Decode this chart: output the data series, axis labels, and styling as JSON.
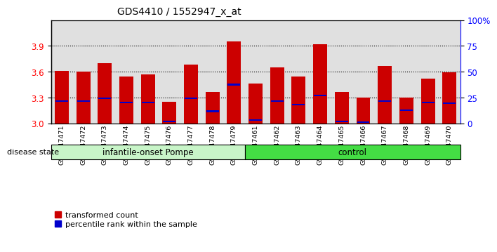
{
  "title": "GDS4410 / 1552947_x_at",
  "samples": [
    "GSM947471",
    "GSM947472",
    "GSM947473",
    "GSM947474",
    "GSM947475",
    "GSM947476",
    "GSM947477",
    "GSM947478",
    "GSM947479",
    "GSM947461",
    "GSM947462",
    "GSM947463",
    "GSM947464",
    "GSM947465",
    "GSM947466",
    "GSM947467",
    "GSM947468",
    "GSM947469",
    "GSM947470"
  ],
  "red_heights": [
    3.61,
    3.6,
    3.7,
    3.54,
    3.57,
    3.25,
    3.68,
    3.36,
    3.95,
    3.46,
    3.65,
    3.54,
    3.92,
    3.36,
    3.3,
    3.67,
    3.3,
    3.52,
    3.59
  ],
  "blue_values": [
    3.26,
    3.26,
    3.29,
    3.24,
    3.24,
    3.02,
    3.29,
    3.14,
    3.45,
    3.04,
    3.26,
    3.22,
    3.32,
    3.02,
    3.01,
    3.26,
    3.15,
    3.24,
    3.23
  ],
  "group_labels": [
    "infantile-onset Pompe",
    "control"
  ],
  "group_sizes": [
    9,
    10
  ],
  "group_color_left": "#c8f5c8",
  "group_color_right": "#44dd44",
  "bar_color": "#CC0000",
  "blue_color": "#0000CC",
  "y_min": 3.0,
  "y_max": 4.2,
  "y_ticks": [
    3.0,
    3.3,
    3.6,
    3.9
  ],
  "right_y_ticks": [
    0,
    25,
    50,
    75,
    100
  ],
  "right_y_labels": [
    "0",
    "25",
    "50",
    "75",
    "100%"
  ]
}
